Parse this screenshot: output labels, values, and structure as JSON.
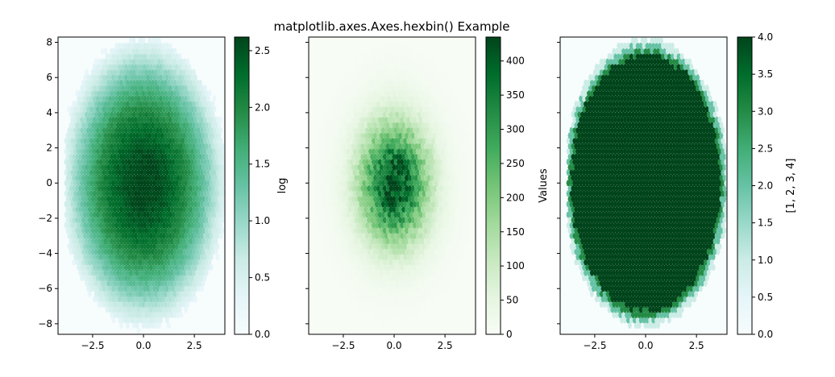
{
  "chart_data": {
    "type": "heatmap",
    "subtype": "hexbin",
    "title": "matplotlib.axes.Axes.hexbin() Example",
    "shared": {
      "xlim": [
        -4.2,
        4.0
      ],
      "ylim": [
        -8.6,
        8.3
      ],
      "xticks": [
        -2.5,
        0.0,
        2.5
      ],
      "xtick_labels": [
        "−2.5",
        "0.0",
        "2.5"
      ],
      "yticks": [
        -8,
        -6,
        -4,
        -2,
        0,
        2,
        4,
        6,
        8
      ],
      "ytick_labels": [
        "−8",
        "−6",
        "−4",
        "−2",
        "0",
        "2",
        "4",
        "6",
        "8"
      ],
      "data_extent": {
        "x": [
          -3.8,
          3.8
        ],
        "y": [
          -8.4,
          8.4
        ]
      },
      "spread": {
        "sx": 1.2,
        "sy": 2.4
      }
    },
    "panels": [
      {
        "id": "log",
        "bins": "log",
        "colormap": "BuGn",
        "colorbar": {
          "label": "log",
          "range": [
            0,
            2.62
          ],
          "ticks": [
            0.0,
            0.5,
            1.0,
            1.5,
            2.0,
            2.5
          ],
          "tick_labels": [
            "0.0",
            "0.5",
            "1.0",
            "1.5",
            "2.0",
            "2.5"
          ]
        },
        "show_yticklabels": true,
        "max_value": 2.62
      },
      {
        "id": "values",
        "bins": "linear",
        "colormap": "Greens",
        "colorbar": {
          "label": "Values",
          "range": [
            0,
            435
          ],
          "ticks": [
            0,
            50,
            100,
            150,
            200,
            250,
            300,
            350,
            400
          ],
          "tick_labels": [
            "0",
            "50",
            "100",
            "150",
            "200",
            "250",
            "300",
            "350",
            "400"
          ]
        },
        "show_yticklabels": false,
        "max_value": 435
      },
      {
        "id": "list",
        "bins": "[1, 2, 3, 4]",
        "colormap": "BuGn",
        "colorbar": {
          "label": "[1, 2, 3, 4]",
          "range": [
            0,
            4
          ],
          "ticks": [
            0.0,
            0.5,
            1.0,
            1.5,
            2.0,
            2.5,
            3.0,
            3.5,
            4.0
          ],
          "tick_labels": [
            "0.0",
            "0.5",
            "1.0",
            "1.5",
            "2.0",
            "2.5",
            "3.0",
            "3.5",
            "4.0"
          ]
        },
        "show_yticklabels": false,
        "max_value": 4
      }
    ]
  }
}
